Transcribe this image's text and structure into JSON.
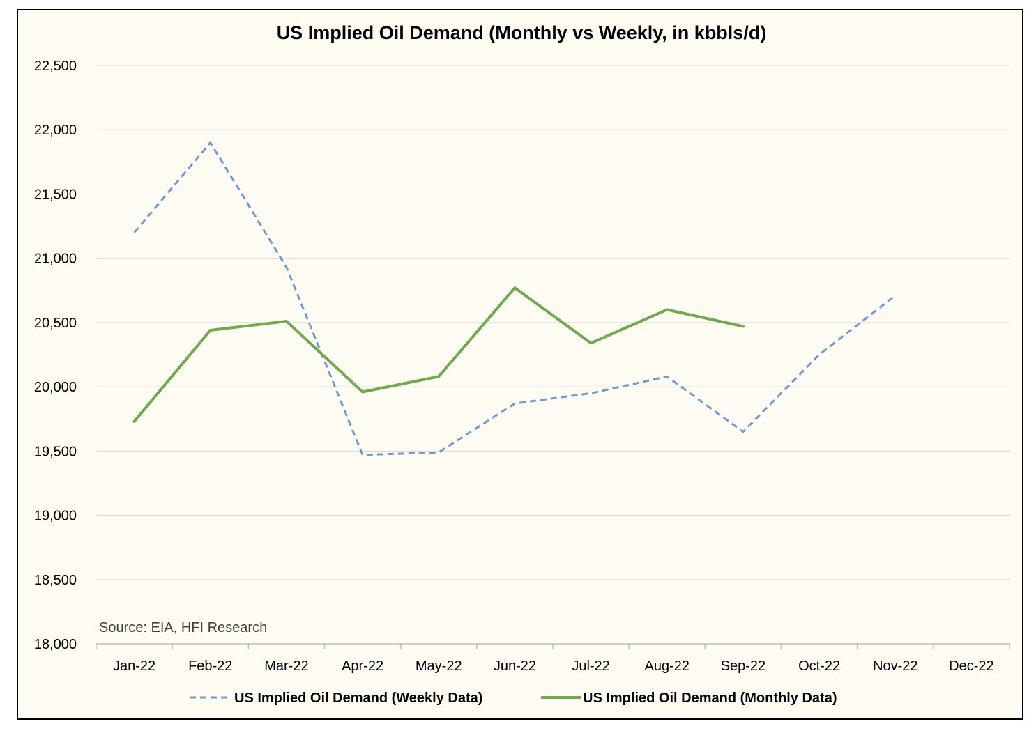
{
  "chart_data": {
    "type": "line",
    "title": "US Implied Oil Demand (Monthly vs Weekly, in kbbls/d)",
    "xlabel": "",
    "ylabel": "",
    "categories": [
      "Jan-22",
      "Feb-22",
      "Mar-22",
      "Apr-22",
      "May-22",
      "Jun-22",
      "Jul-22",
      "Aug-22",
      "Sep-22",
      "Oct-22",
      "Nov-22",
      "Dec-22"
    ],
    "ylim": [
      18000,
      22500
    ],
    "yticks": [
      18000,
      18500,
      19000,
      19500,
      20000,
      20500,
      21000,
      21500,
      22000,
      22500
    ],
    "ytick_labels": [
      "18,000",
      "18,500",
      "19,000",
      "19,500",
      "20,000",
      "20,500",
      "21,000",
      "21,500",
      "22,000",
      "22,500"
    ],
    "grid": true,
    "legend_position": "bottom",
    "series": [
      {
        "name": "US Implied Oil Demand (Weekly Data)",
        "color": "#6f9bd1",
        "style": "dashed",
        "values": [
          21200,
          21900,
          20930,
          19470,
          19490,
          19870,
          19950,
          20080,
          19650,
          20250,
          20710,
          null
        ]
      },
      {
        "name": "US Implied Oil Demand (Monthly Data)",
        "color": "#72a84f",
        "style": "solid",
        "values": [
          19730,
          20440,
          20510,
          19960,
          20080,
          20770,
          20340,
          20600,
          20470,
          null,
          null,
          null
        ]
      }
    ],
    "annotation": "Source: EIA, HFI Research"
  }
}
